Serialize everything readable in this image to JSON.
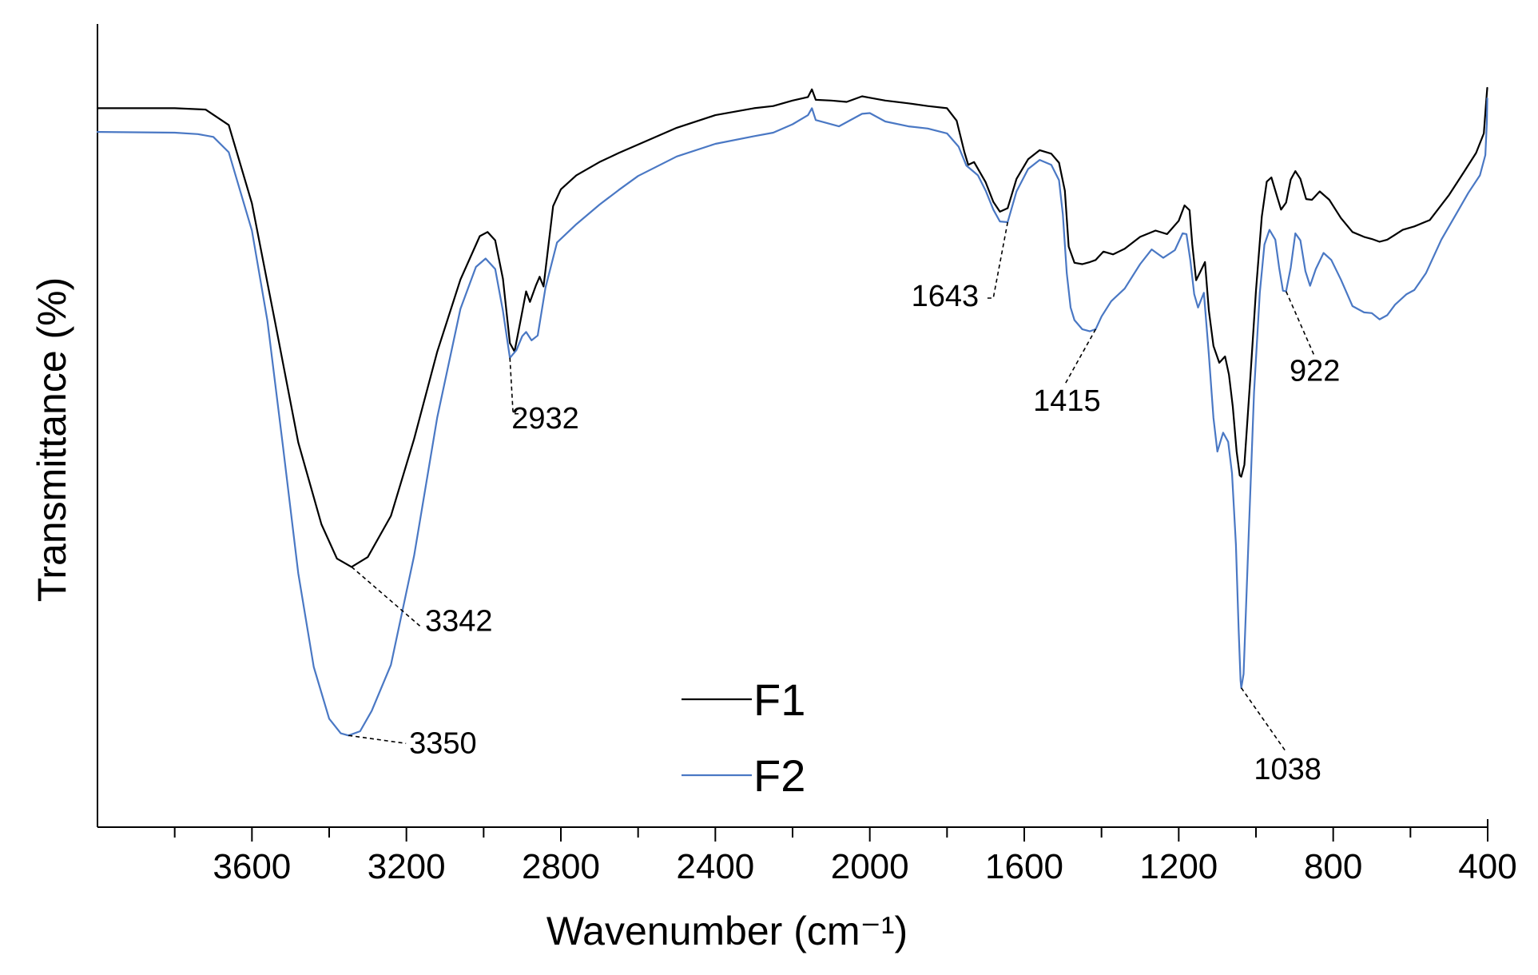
{
  "chart_data": {
    "type": "line",
    "xlabel": "Wavenumber (cm⁻¹)",
    "ylabel": "Transmittance (%)",
    "xlim": [
      4000,
      400
    ],
    "x_reversed": true,
    "x_ticks": [
      3600,
      3200,
      2800,
      2400,
      2000,
      1600,
      1200,
      800,
      400
    ],
    "x_minor_step": 200,
    "y_ticks_shown": false,
    "grid": false,
    "legend_placement": "bottom-center",
    "series": [
      {
        "name": "F1",
        "color": "#000000",
        "points": [
          [
            4000,
            97.1
          ],
          [
            3800,
            97.1
          ],
          [
            3720,
            96.9
          ],
          [
            3660,
            94.7
          ],
          [
            3600,
            83.5
          ],
          [
            3540,
            66.5
          ],
          [
            3480,
            49.3
          ],
          [
            3420,
            37.6
          ],
          [
            3380,
            32.7
          ],
          [
            3342,
            31.5
          ],
          [
            3300,
            32.9
          ],
          [
            3240,
            38.8
          ],
          [
            3180,
            49.8
          ],
          [
            3120,
            62.3
          ],
          [
            3060,
            72.6
          ],
          [
            3010,
            78.8
          ],
          [
            2990,
            79.4
          ],
          [
            2970,
            78.2
          ],
          [
            2950,
            72.7
          ],
          [
            2932,
            63.5
          ],
          [
            2920,
            62.3
          ],
          [
            2905,
            66.6
          ],
          [
            2890,
            70.9
          ],
          [
            2880,
            69.4
          ],
          [
            2865,
            71.7
          ],
          [
            2855,
            73.0
          ],
          [
            2845,
            71.6
          ],
          [
            2820,
            83.1
          ],
          [
            2800,
            85.5
          ],
          [
            2760,
            87.5
          ],
          [
            2700,
            89.4
          ],
          [
            2650,
            90.7
          ],
          [
            2600,
            91.9
          ],
          [
            2500,
            94.3
          ],
          [
            2400,
            96.1
          ],
          [
            2300,
            97.1
          ],
          [
            2250,
            97.4
          ],
          [
            2200,
            98.2
          ],
          [
            2160,
            98.7
          ],
          [
            2150,
            99.8
          ],
          [
            2140,
            98.3
          ],
          [
            2100,
            98.2
          ],
          [
            2060,
            98.0
          ],
          [
            2020,
            98.8
          ],
          [
            2000,
            98.6
          ],
          [
            1960,
            98.2
          ],
          [
            1900,
            97.8
          ],
          [
            1850,
            97.4
          ],
          [
            1800,
            97.1
          ],
          [
            1775,
            95.3
          ],
          [
            1755,
            90.8
          ],
          [
            1745,
            89.0
          ],
          [
            1730,
            89.4
          ],
          [
            1700,
            86.5
          ],
          [
            1680,
            83.7
          ],
          [
            1663,
            82.3
          ],
          [
            1643,
            82.8
          ],
          [
            1620,
            87.0
          ],
          [
            1590,
            89.8
          ],
          [
            1560,
            91.1
          ],
          [
            1530,
            90.6
          ],
          [
            1510,
            89.3
          ],
          [
            1495,
            85.3
          ],
          [
            1485,
            77.3
          ],
          [
            1470,
            75.0
          ],
          [
            1450,
            74.8
          ],
          [
            1430,
            75.1
          ],
          [
            1415,
            75.4
          ],
          [
            1395,
            76.6
          ],
          [
            1370,
            76.2
          ],
          [
            1340,
            77.0
          ],
          [
            1300,
            78.7
          ],
          [
            1260,
            79.6
          ],
          [
            1230,
            79.1
          ],
          [
            1200,
            81.0
          ],
          [
            1185,
            83.2
          ],
          [
            1172,
            82.5
          ],
          [
            1165,
            77.6
          ],
          [
            1155,
            72.5
          ],
          [
            1145,
            73.6
          ],
          [
            1132,
            75.1
          ],
          [
            1122,
            68.2
          ],
          [
            1110,
            63.1
          ],
          [
            1095,
            60.7
          ],
          [
            1080,
            61.6
          ],
          [
            1070,
            59.0
          ],
          [
            1060,
            54.4
          ],
          [
            1050,
            48.0
          ],
          [
            1042,
            44.6
          ],
          [
            1038,
            44.4
          ],
          [
            1030,
            46.1
          ],
          [
            1015,
            58.3
          ],
          [
            1000,
            71.0
          ],
          [
            985,
            81.6
          ],
          [
            972,
            86.6
          ],
          [
            960,
            87.2
          ],
          [
            945,
            84.4
          ],
          [
            935,
            82.6
          ],
          [
            922,
            83.6
          ],
          [
            910,
            86.9
          ],
          [
            898,
            88.1
          ],
          [
            885,
            87.0
          ],
          [
            870,
            84.1
          ],
          [
            855,
            84.0
          ],
          [
            835,
            85.2
          ],
          [
            810,
            84.0
          ],
          [
            780,
            81.4
          ],
          [
            750,
            79.4
          ],
          [
            720,
            78.7
          ],
          [
            700,
            78.4
          ],
          [
            680,
            78.0
          ],
          [
            660,
            78.3
          ],
          [
            640,
            79.0
          ],
          [
            620,
            79.7
          ],
          [
            590,
            80.2
          ],
          [
            550,
            81.1
          ],
          [
            500,
            84.7
          ],
          [
            460,
            88.1
          ],
          [
            430,
            90.7
          ],
          [
            410,
            93.5
          ],
          [
            404,
            98.0
          ],
          [
            401,
            100.0
          ]
        ]
      },
      {
        "name": "F2",
        "color": "#4a78c4",
        "points": [
          [
            4000,
            93.7
          ],
          [
            3800,
            93.6
          ],
          [
            3740,
            93.4
          ],
          [
            3700,
            93.0
          ],
          [
            3660,
            90.8
          ],
          [
            3600,
            79.6
          ],
          [
            3560,
            66.7
          ],
          [
            3520,
            48.9
          ],
          [
            3480,
            30.6
          ],
          [
            3440,
            17.2
          ],
          [
            3400,
            9.8
          ],
          [
            3370,
            7.7
          ],
          [
            3350,
            7.4
          ],
          [
            3320,
            8.0
          ],
          [
            3290,
            10.9
          ],
          [
            3240,
            17.5
          ],
          [
            3180,
            33.1
          ],
          [
            3120,
            52.9
          ],
          [
            3060,
            68.4
          ],
          [
            3020,
            74.4
          ],
          [
            2995,
            75.6
          ],
          [
            2970,
            74.1
          ],
          [
            2950,
            68.1
          ],
          [
            2932,
            61.4
          ],
          [
            2915,
            62.5
          ],
          [
            2900,
            64.5
          ],
          [
            2890,
            65.1
          ],
          [
            2876,
            63.9
          ],
          [
            2860,
            64.6
          ],
          [
            2840,
            71.4
          ],
          [
            2810,
            77.9
          ],
          [
            2760,
            80.5
          ],
          [
            2700,
            83.3
          ],
          [
            2650,
            85.4
          ],
          [
            2600,
            87.4
          ],
          [
            2500,
            90.2
          ],
          [
            2400,
            92.0
          ],
          [
            2300,
            93.1
          ],
          [
            2250,
            93.6
          ],
          [
            2200,
            94.8
          ],
          [
            2160,
            96.1
          ],
          [
            2150,
            97.1
          ],
          [
            2140,
            95.4
          ],
          [
            2080,
            94.5
          ],
          [
            2020,
            96.3
          ],
          [
            2000,
            96.4
          ],
          [
            1960,
            95.2
          ],
          [
            1900,
            94.5
          ],
          [
            1850,
            94.2
          ],
          [
            1800,
            93.5
          ],
          [
            1770,
            91.6
          ],
          [
            1750,
            88.9
          ],
          [
            1720,
            87.5
          ],
          [
            1700,
            85.3
          ],
          [
            1680,
            82.6
          ],
          [
            1663,
            80.9
          ],
          [
            1643,
            80.8
          ],
          [
            1620,
            85.2
          ],
          [
            1590,
            88.4
          ],
          [
            1560,
            89.7
          ],
          [
            1530,
            89.0
          ],
          [
            1510,
            86.8
          ],
          [
            1500,
            81.9
          ],
          [
            1490,
            73.5
          ],
          [
            1480,
            68.6
          ],
          [
            1470,
            66.8
          ],
          [
            1450,
            65.5
          ],
          [
            1430,
            65.2
          ],
          [
            1415,
            65.5
          ],
          [
            1400,
            67.3
          ],
          [
            1375,
            69.5
          ],
          [
            1340,
            71.3
          ],
          [
            1300,
            74.8
          ],
          [
            1270,
            76.9
          ],
          [
            1240,
            75.7
          ],
          [
            1210,
            76.8
          ],
          [
            1190,
            79.2
          ],
          [
            1180,
            79.1
          ],
          [
            1170,
            75.4
          ],
          [
            1160,
            70.5
          ],
          [
            1150,
            68.6
          ],
          [
            1135,
            70.7
          ],
          [
            1122,
            61.9
          ],
          [
            1110,
            52.8
          ],
          [
            1100,
            48.0
          ],
          [
            1085,
            50.7
          ],
          [
            1072,
            49.4
          ],
          [
            1062,
            44.9
          ],
          [
            1052,
            34.7
          ],
          [
            1045,
            22.6
          ],
          [
            1040,
            15.3
          ],
          [
            1038,
            14.2
          ],
          [
            1032,
            16.2
          ],
          [
            1020,
            34.2
          ],
          [
            1005,
            56.5
          ],
          [
            990,
            70.7
          ],
          [
            978,
            77.6
          ],
          [
            965,
            79.7
          ],
          [
            950,
            78.3
          ],
          [
            940,
            74.3
          ],
          [
            930,
            71.0
          ],
          [
            922,
            70.9
          ],
          [
            910,
            74.3
          ],
          [
            898,
            79.2
          ],
          [
            885,
            78.2
          ],
          [
            872,
            73.8
          ],
          [
            860,
            71.7
          ],
          [
            845,
            74.1
          ],
          [
            825,
            76.4
          ],
          [
            805,
            75.4
          ],
          [
            780,
            72.6
          ],
          [
            750,
            68.8
          ],
          [
            720,
            67.9
          ],
          [
            700,
            67.8
          ],
          [
            680,
            66.9
          ],
          [
            660,
            67.5
          ],
          [
            640,
            69.0
          ],
          [
            610,
            70.5
          ],
          [
            590,
            71.1
          ],
          [
            560,
            73.5
          ],
          [
            520,
            78.3
          ],
          [
            480,
            82.1
          ],
          [
            450,
            85.0
          ],
          [
            420,
            87.5
          ],
          [
            406,
            90.4
          ],
          [
            402,
            95.1
          ],
          [
            401,
            98.5
          ]
        ]
      }
    ],
    "annotations": [
      {
        "label": "3342",
        "series": "F1",
        "x": 3342
      },
      {
        "label": "3350",
        "series": "F2",
        "x": 3350
      },
      {
        "label": "2932",
        "series": "F2",
        "x": 2932
      },
      {
        "label": "1643",
        "series": "F2",
        "x": 1643
      },
      {
        "label": "1415",
        "series": "F2",
        "x": 1415
      },
      {
        "label": "1038",
        "series": "F2",
        "x": 1038
      },
      {
        "label": "922",
        "series": "F2",
        "x": 922
      }
    ]
  }
}
